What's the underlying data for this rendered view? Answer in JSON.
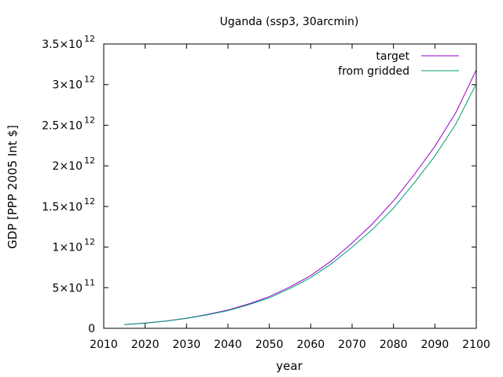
{
  "chart_data": {
    "type": "line",
    "title": "Uganda (ssp3, 30arcmin)",
    "xlabel": "year",
    "ylabel": "GDP [PPP 2005 Int $]",
    "xlim": [
      2010,
      2100
    ],
    "ylim": [
      0,
      3500000000000.0
    ],
    "xticks": [
      "2010",
      "2020",
      "2030",
      "2040",
      "2050",
      "2060",
      "2070",
      "2080",
      "2090",
      "2100"
    ],
    "yticks": [
      {
        "value": 0,
        "mantissa": "0",
        "exponent": ""
      },
      {
        "value": 500000000000.0,
        "mantissa": "5×10",
        "exponent": "11"
      },
      {
        "value": 1000000000000.0,
        "mantissa": "1×10",
        "exponent": "12"
      },
      {
        "value": 1500000000000.0,
        "mantissa": "1.5×10",
        "exponent": "12"
      },
      {
        "value": 2000000000000.0,
        "mantissa": "2×10",
        "exponent": "12"
      },
      {
        "value": 2500000000000.0,
        "mantissa": "2.5×10",
        "exponent": "12"
      },
      {
        "value": 3000000000000.0,
        "mantissa": "3×10",
        "exponent": "12"
      },
      {
        "value": 3500000000000.0,
        "mantissa": "3.5×10",
        "exponent": "12"
      }
    ],
    "grid": false,
    "legend_position": "top-right",
    "x": [
      2015,
      2020,
      2025,
      2030,
      2035,
      2040,
      2045,
      2050,
      2055,
      2060,
      2065,
      2070,
      2075,
      2080,
      2085,
      2090,
      2095,
      2100
    ],
    "series": [
      {
        "name": "target",
        "color": "#9400d3",
        "values": [
          45000000000.0,
          65000000000.0,
          90000000000.0,
          125000000000.0,
          170000000000.0,
          225000000000.0,
          300000000000.0,
          390000000000.0,
          510000000000.0,
          650000000000.0,
          830000000000.0,
          1050000000000.0,
          1290000000000.0,
          1570000000000.0,
          1890000000000.0,
          2240000000000.0,
          2650000000000.0,
          3180000000000.0
        ]
      },
      {
        "name": "from gridded",
        "color": "#009e73",
        "values": [
          44000000000.0,
          63000000000.0,
          88000000000.0,
          122000000000.0,
          165000000000.0,
          218000000000.0,
          290000000000.0,
          375000000000.0,
          490000000000.0,
          625000000000.0,
          795000000000.0,
          1000000000000.0,
          1220000000000.0,
          1480000000000.0,
          1790000000000.0,
          2120000000000.0,
          2510000000000.0,
          3010000000000.0
        ]
      }
    ]
  }
}
